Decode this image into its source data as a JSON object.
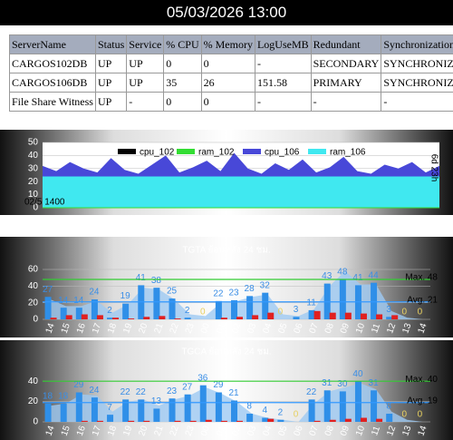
{
  "header": {
    "title": "05/03/2026 13:00"
  },
  "table": {
    "header": [
      "ServerName",
      "Status",
      "Service",
      "% CPU",
      "% Memory",
      "LogUseMB",
      "Redundant",
      "Synchronization"
    ],
    "rows": [
      [
        "CARGOS102DB",
        "UP",
        "UP",
        "0",
        "0",
        "-",
        "SECONDARY",
        "SYNCHRONIZED"
      ],
      [
        "CARGOS106DB",
        "UP",
        "UP",
        "35",
        "26",
        "151.58",
        "PRIMARY",
        "SYNCHRONIZED"
      ],
      [
        "File Share Witness",
        "UP",
        "-",
        "0",
        "0",
        "-",
        "-",
        "-"
      ]
    ]
  },
  "chart_data": [
    {
      "type": "area",
      "ylim": [
        0,
        50
      ],
      "yticks": [
        0,
        10,
        20,
        30,
        40,
        50
      ],
      "start_label": "02/5 1400",
      "span_label": "6d 23h",
      "series": [
        {
          "name": "cpu_102",
          "color": "#000000",
          "values": [
            0,
            0,
            0,
            0,
            0,
            0,
            0,
            0,
            0,
            0,
            0,
            0,
            0,
            0,
            0,
            0,
            0,
            0,
            0,
            0,
            0,
            0,
            0,
            0,
            0,
            0,
            0,
            0,
            0,
            0
          ]
        },
        {
          "name": "ram_102",
          "color": "#33dd33",
          "values": [
            0,
            0,
            0,
            0,
            0,
            0,
            0,
            0,
            0,
            0,
            0,
            0,
            0,
            0,
            0,
            0,
            0,
            0,
            0,
            0,
            0,
            0,
            0,
            0,
            0,
            0,
            0,
            0,
            0,
            0
          ]
        },
        {
          "name": "cpu_106",
          "color": "#4848d8",
          "values": [
            32,
            28,
            35,
            30,
            27,
            38,
            29,
            26,
            33,
            40,
            27,
            31,
            36,
            28,
            42,
            30,
            26,
            34,
            29,
            37,
            27,
            31,
            39,
            28,
            26,
            33,
            30,
            35,
            27,
            32
          ]
        },
        {
          "name": "ram_106",
          "color": "#40e8f0",
          "values": [
            24,
            24,
            24,
            24,
            24,
            24,
            24,
            24,
            24,
            24,
            24,
            24,
            24,
            24,
            24,
            24,
            24,
            24,
            24,
            24,
            24,
            24,
            24,
            24,
            24,
            24,
            24,
            24,
            24,
            24
          ]
        }
      ]
    },
    {
      "type": "bar",
      "title": "TGTA ย้อนหลัง 24 ชม.",
      "ylim": [
        0,
        60
      ],
      "yticks": [
        0,
        20,
        40,
        60
      ],
      "categories": [
        "14",
        "15",
        "16",
        "17",
        "18",
        "19",
        "20",
        "21",
        "22",
        "23",
        "00",
        "01",
        "02",
        "03",
        "04",
        "05",
        "06",
        "07",
        "08",
        "09",
        "10",
        "11",
        "12",
        "13",
        "14"
      ],
      "area": {
        "color": "#9ec9f2",
        "values": [
          24,
          16,
          16,
          22,
          8,
          18,
          38,
          36,
          24,
          6,
          4,
          20,
          22,
          27,
          30,
          6,
          4,
          12,
          40,
          58,
          42,
          42,
          10,
          2,
          0
        ]
      },
      "series": [
        {
          "color": "#2f8fe8",
          "values": [
            27,
            14,
            14,
            24,
            2,
            19,
            41,
            38,
            25,
            2,
            0,
            22,
            23,
            28,
            32,
            0,
            3,
            11,
            43,
            48,
            41,
            44,
            3,
            0,
            0
          ]
        },
        {
          "color": "#e02020",
          "values": [
            2,
            5,
            6,
            5,
            2,
            1,
            3,
            4,
            1,
            0,
            0,
            2,
            3,
            5,
            8,
            0,
            0,
            10,
            8,
            8,
            7,
            6,
            5,
            0,
            0
          ]
        }
      ],
      "max_line": {
        "label": "Max. 48",
        "value": 48,
        "color": "#33cc33"
      },
      "avg_line": {
        "label": "Avg. 21",
        "value": 21,
        "color": "#3399ff"
      }
    },
    {
      "type": "bar",
      "title": "TGCA ย้อนหลัง 24 ชม.",
      "ylim": [
        0,
        50
      ],
      "yticks": [
        0,
        20,
        40
      ],
      "categories": [
        "14",
        "15",
        "16",
        "17",
        "18",
        "19",
        "20",
        "21",
        "22",
        "23",
        "00",
        "01",
        "02",
        "03",
        "04",
        "05",
        "06",
        "07",
        "08",
        "09",
        "10",
        "11",
        "12",
        "13",
        "14"
      ],
      "area": {
        "color": "#9ec9f2",
        "values": [
          16,
          18,
          27,
          26,
          10,
          20,
          22,
          16,
          22,
          26,
          34,
          28,
          20,
          8,
          4,
          2,
          0,
          18,
          30,
          34,
          38,
          32,
          10,
          2,
          0
        ]
      },
      "series": [
        {
          "color": "#2f8fe8",
          "values": [
            18,
            18,
            29,
            24,
            7,
            22,
            22,
            13,
            23,
            27,
            36,
            29,
            21,
            8,
            4,
            2,
            0,
            22,
            31,
            30,
            40,
            31,
            8,
            0,
            0
          ]
        },
        {
          "color": "#e02020",
          "values": [
            0,
            0,
            1,
            1,
            0,
            1,
            1,
            0,
            1,
            1,
            2,
            1,
            1,
            0,
            3,
            0,
            0,
            1,
            2,
            3,
            4,
            3,
            0,
            0,
            0
          ]
        }
      ],
      "max_line": {
        "label": "Max. 40",
        "value": 40,
        "color": "#33cc33"
      },
      "avg_line": {
        "label": "Avg. 19",
        "value": 19,
        "color": "#3399ff"
      }
    }
  ]
}
